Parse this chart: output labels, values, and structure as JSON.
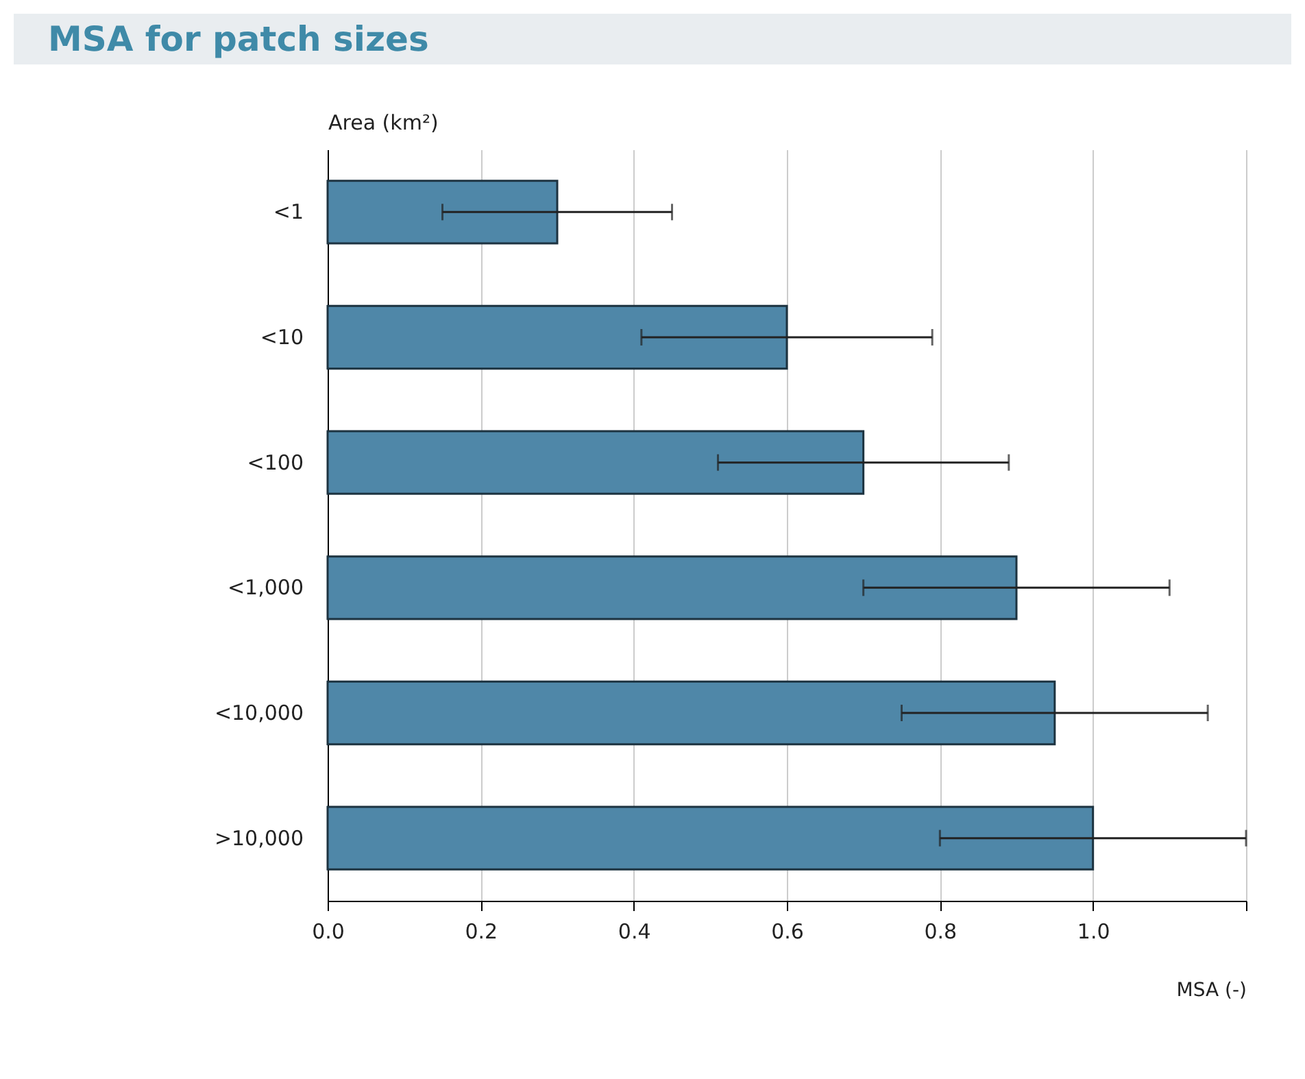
{
  "chart_data": {
    "type": "bar",
    "orientation": "horizontal",
    "title": "MSA for patch sizes",
    "xlabel": "MSA (-)",
    "ylabel": "Area (km²)",
    "categories": [
      "<1",
      "<10",
      "<100",
      "<1,000",
      "<10,000",
      ">10,000"
    ],
    "values": [
      0.3,
      0.6,
      0.7,
      0.9,
      0.95,
      1.0
    ],
    "errors": [
      0.15,
      0.19,
      0.19,
      0.2,
      0.2,
      0.2
    ],
    "color": "#4f87a8",
    "xlim": [
      0,
      1.2
    ],
    "xticks": [
      "0.0",
      0.2,
      0.4,
      0.6,
      0.8,
      "1.0",
      {
        "value": 1.2,
        "label": null
      }
    ],
    "grid": "x"
  }
}
